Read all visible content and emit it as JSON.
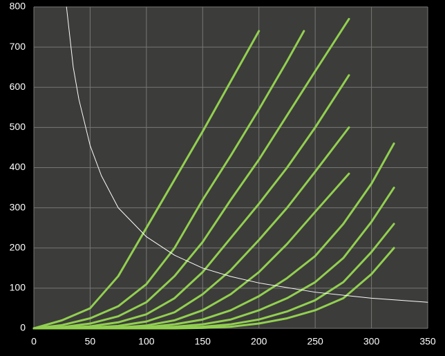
{
  "chart_data": {
    "type": "line",
    "xlim": [
      0,
      350
    ],
    "ylim": [
      0,
      800
    ],
    "xticks": [
      0,
      50,
      100,
      150,
      200,
      250,
      300,
      350
    ],
    "yticks": [
      0,
      100,
      200,
      300,
      400,
      500,
      600,
      700,
      800
    ],
    "grid": true,
    "series": [
      {
        "color": "#92d050",
        "x": [
          0,
          25,
          50,
          75,
          100,
          125,
          150,
          175,
          200
        ],
        "values": [
          0,
          20,
          50,
          130,
          250,
          370,
          490,
          615,
          740
        ]
      },
      {
        "color": "#92d050",
        "x": [
          0,
          25,
          50,
          75,
          100,
          125,
          150,
          175,
          200,
          225,
          240
        ],
        "values": [
          0,
          8,
          25,
          55,
          110,
          200,
          320,
          430,
          545,
          665,
          740
        ]
      },
      {
        "color": "#92d050",
        "x": [
          0,
          25,
          50,
          75,
          100,
          125,
          150,
          175,
          200,
          225,
          250,
          280
        ],
        "values": [
          0,
          3,
          12,
          30,
          65,
          130,
          215,
          320,
          420,
          530,
          640,
          770
        ]
      },
      {
        "color": "#92d050",
        "x": [
          0,
          25,
          50,
          75,
          100,
          125,
          150,
          175,
          200,
          225,
          250,
          280
        ],
        "values": [
          0,
          1,
          5,
          15,
          35,
          75,
          140,
          225,
          310,
          400,
          500,
          630
        ]
      },
      {
        "color": "#92d050",
        "x": [
          0,
          25,
          50,
          75,
          100,
          125,
          150,
          175,
          200,
          225,
          250,
          280
        ],
        "values": [
          0,
          0,
          2,
          6,
          17,
          40,
          85,
          145,
          220,
          300,
          390,
          500
        ]
      },
      {
        "color": "#92d050",
        "x": [
          0,
          25,
          50,
          75,
          100,
          125,
          150,
          175,
          200,
          225,
          250,
          280
        ],
        "values": [
          0,
          0,
          0,
          2,
          7,
          20,
          45,
          85,
          140,
          210,
          290,
          385
        ]
      },
      {
        "color": "#92d050",
        "x": [
          0,
          50,
          100,
          125,
          150,
          175,
          200,
          225,
          250,
          275,
          300,
          320
        ],
        "values": [
          0,
          0,
          3,
          10,
          22,
          45,
          80,
          125,
          180,
          260,
          360,
          460
        ]
      },
      {
        "color": "#92d050",
        "x": [
          0,
          50,
          100,
          125,
          150,
          175,
          200,
          225,
          250,
          275,
          300,
          320
        ],
        "values": [
          0,
          0,
          1,
          4,
          10,
          22,
          45,
          75,
          115,
          175,
          265,
          350
        ]
      },
      {
        "color": "#92d050",
        "x": [
          0,
          50,
          100,
          125,
          150,
          175,
          200,
          225,
          250,
          275,
          300,
          320
        ],
        "values": [
          0,
          0,
          0,
          1,
          4,
          10,
          22,
          42,
          70,
          115,
          190,
          260
        ]
      },
      {
        "color": "#92d050",
        "x": [
          0,
          50,
          100,
          125,
          150,
          175,
          200,
          225,
          250,
          275,
          300,
          320
        ],
        "values": [
          0,
          0,
          0,
          0,
          1,
          4,
          12,
          25,
          45,
          75,
          135,
          200
        ]
      },
      {
        "color": "#ffffff",
        "x": [
          29,
          35,
          40,
          50,
          60,
          75,
          100,
          125,
          150,
          175,
          200,
          250,
          300,
          350
        ],
        "values": [
          800,
          650,
          570,
          455,
          380,
          300,
          228,
          182,
          150,
          129,
          113,
          90,
          75,
          65
        ]
      }
    ]
  }
}
